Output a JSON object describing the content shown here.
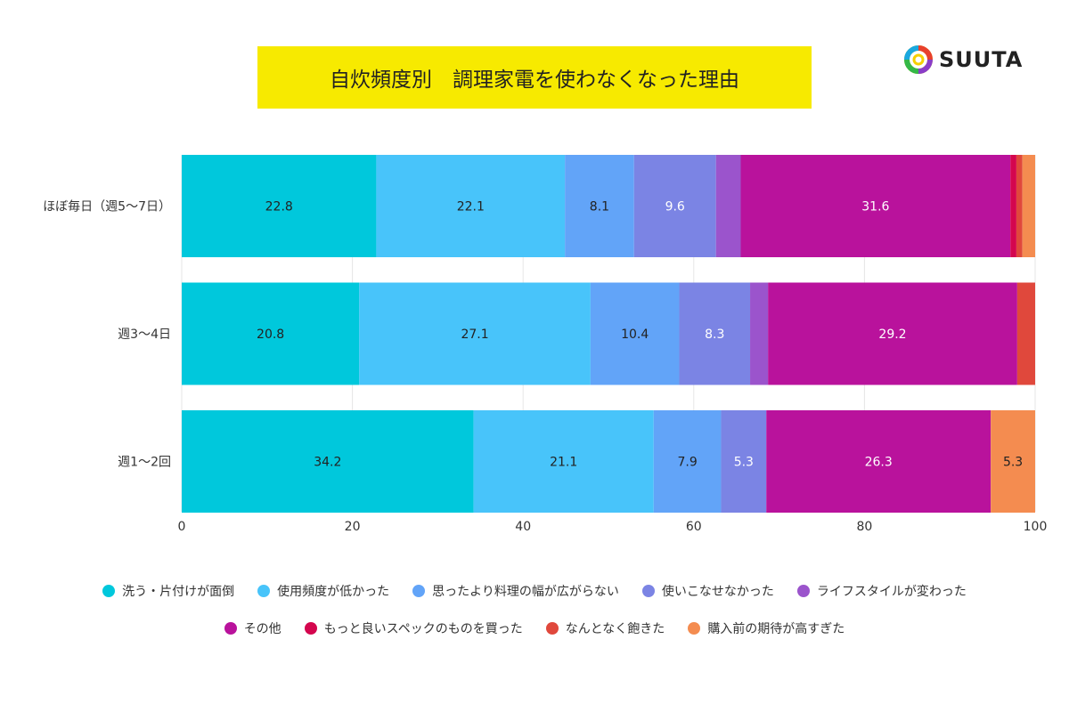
{
  "chart_data": {
    "type": "bar",
    "orientation": "horizontal",
    "stacked": true,
    "title": "自炊頻度別　調理家電を使わなくなった理由",
    "categories": [
      "ほぼ毎日（週5〜7日）",
      "週3〜4日",
      "週1〜2回"
    ],
    "xlim": [
      0,
      100
    ],
    "xticks": [
      0,
      20,
      40,
      60,
      80,
      100
    ],
    "grid": true,
    "legend_position": "bottom",
    "series": [
      {
        "name": "洗う・片付けが面倒",
        "color": "#00c8dc",
        "values": [
          22.8,
          20.8,
          34.2
        ],
        "labels": [
          "22.8",
          "20.8",
          "34.2"
        ],
        "label_color": "#222"
      },
      {
        "name": "使用頻度が低かった",
        "color": "#48c4fa",
        "values": [
          22.1,
          27.1,
          21.1
        ],
        "labels": [
          "22.1",
          "27.1",
          "21.1"
        ],
        "label_color": "#222"
      },
      {
        "name": "思ったより料理の幅が広がらない",
        "color": "#62a4f8",
        "values": [
          8.1,
          10.4,
          7.9
        ],
        "labels": [
          "8.1",
          "10.4",
          "7.9"
        ],
        "label_color": "#222"
      },
      {
        "name": "使いこなせなかった",
        "color": "#7b84e4",
        "values": [
          9.6,
          8.3,
          5.3
        ],
        "labels": [
          "9.6",
          "8.3",
          "5.3"
        ],
        "label_color": "#fff"
      },
      {
        "name": "ライフスタイルが変わった",
        "color": "#9b54cc",
        "values": [
          2.9,
          2.1,
          0
        ],
        "labels": [
          "",
          "",
          ""
        ],
        "label_color": "#fff"
      },
      {
        "name": "その他",
        "color": "#b9129c",
        "values": [
          31.6,
          29.2,
          26.3
        ],
        "labels": [
          "31.6",
          "29.2",
          "26.3"
        ],
        "label_color": "#fff"
      },
      {
        "name": "もっと良いスペックのものを買った",
        "color": "#d4064e",
        "values": [
          0.7,
          0,
          0
        ],
        "labels": [
          "",
          "",
          ""
        ],
        "label_color": "#fff"
      },
      {
        "name": "なんとなく飽きた",
        "color": "#e0483c",
        "values": [
          0.7,
          2.1,
          0
        ],
        "labels": [
          "",
          "",
          ""
        ],
        "label_color": "#fff"
      },
      {
        "name": "購入前の期待が高すぎた",
        "color": "#f48c50",
        "values": [
          1.5,
          0,
          5.3
        ],
        "labels": [
          "",
          "",
          "5.3"
        ],
        "label_color": "#222"
      }
    ]
  },
  "logo": {
    "text": "SUUTA"
  }
}
